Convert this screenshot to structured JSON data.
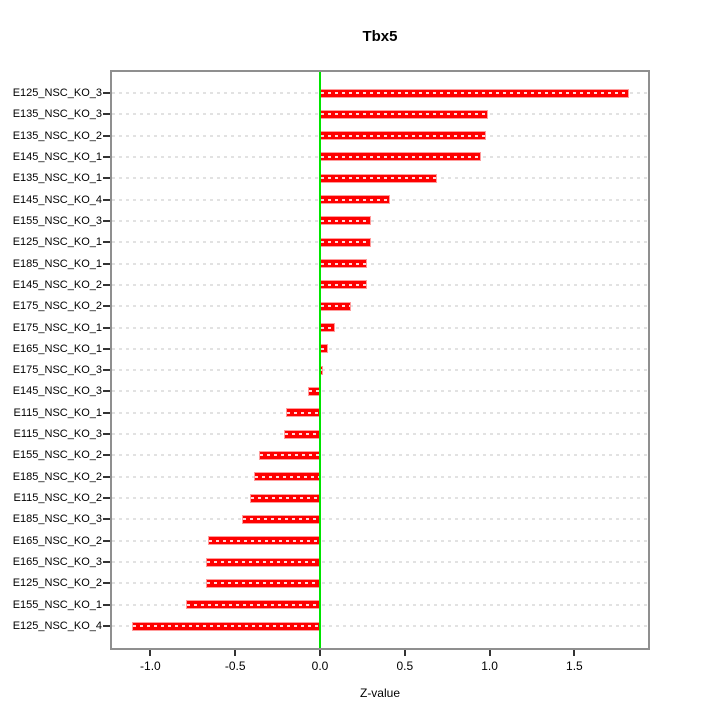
{
  "title": "Tbx5",
  "chart_data": {
    "type": "bar",
    "orientation": "horizontal",
    "title": "Tbx5",
    "xlabel": "Z-value",
    "ylabel": "",
    "grid": true,
    "legend": false,
    "xlim": [
      -1.23,
      1.93
    ],
    "xticks": [
      -1.0,
      -0.5,
      0.0,
      0.5,
      1.0,
      1.5
    ],
    "xtick_labels": [
      "-1.0",
      "-0.5",
      "0.0",
      "0.5",
      "1.0",
      "1.5"
    ],
    "categories": [
      "E125_NSC_KO_3",
      "E135_NSC_KO_3",
      "E135_NSC_KO_2",
      "E145_NSC_KO_1",
      "E135_NSC_KO_1",
      "E145_NSC_KO_4",
      "E155_NSC_KO_3",
      "E125_NSC_KO_1",
      "E185_NSC_KO_1",
      "E145_NSC_KO_2",
      "E175_NSC_KO_2",
      "E175_NSC_KO_1",
      "E165_NSC_KO_1",
      "E175_NSC_KO_3",
      "E145_NSC_KO_3",
      "E115_NSC_KO_1",
      "E115_NSC_KO_3",
      "E155_NSC_KO_2",
      "E185_NSC_KO_2",
      "E115_NSC_KO_2",
      "E185_NSC_KO_3",
      "E165_NSC_KO_2",
      "E165_NSC_KO_3",
      "E125_NSC_KO_2",
      "E155_NSC_KO_1",
      "E125_NSC_KO_4"
    ],
    "values": [
      1.82,
      0.99,
      0.98,
      0.95,
      0.69,
      0.41,
      0.3,
      0.3,
      0.28,
      0.28,
      0.18,
      0.09,
      0.05,
      0.02,
      -0.07,
      -0.2,
      -0.21,
      -0.36,
      -0.39,
      -0.41,
      -0.46,
      -0.66,
      -0.67,
      -0.67,
      -0.79,
      -1.11
    ],
    "colors": {
      "bar_fill": "#fe0000",
      "bar_border": "#ff9b9b",
      "zero_line": "#00e400",
      "gridline": "#e2e2e2",
      "box": "#8f8f8f",
      "text": "#000000"
    }
  }
}
